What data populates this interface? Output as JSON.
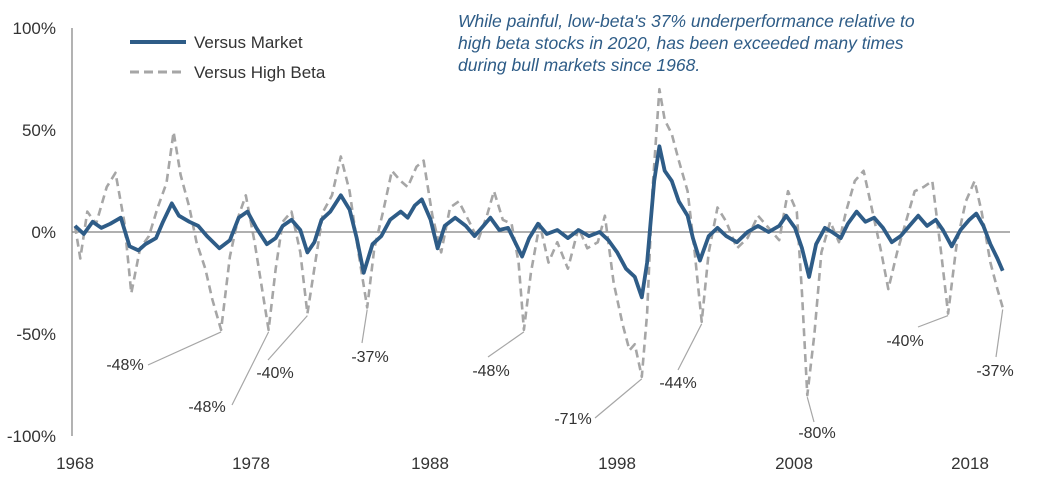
{
  "chart_data": {
    "type": "line",
    "x_unit": "year",
    "xlim": [
      1968,
      2021
    ],
    "ylim": [
      -100,
      100
    ],
    "y_ticks": [
      "100%",
      "50%",
      "0%",
      "-50%",
      "-100%"
    ],
    "y_tick_values": [
      100,
      50,
      0,
      -50,
      -100
    ],
    "x_ticks": [
      "1968",
      "1978",
      "1988",
      "1998",
      "2008",
      "2018"
    ],
    "x_tick_values": [
      1968,
      1978,
      1988,
      1998,
      2008,
      2018
    ],
    "grid": false,
    "legend_placement": "top-left",
    "series": [
      {
        "name": "Versus Market",
        "color": "#2e5c87",
        "style": "solid",
        "points": [
          [
            1968.0,
            3
          ],
          [
            1968.5,
            -1
          ],
          [
            1969.0,
            5
          ],
          [
            1969.5,
            2
          ],
          [
            1970.0,
            4
          ],
          [
            1970.6,
            7
          ],
          [
            1971.1,
            -7
          ],
          [
            1971.6,
            -9
          ],
          [
            1972.0,
            -6
          ],
          [
            1972.6,
            -3
          ],
          [
            1973.0,
            5
          ],
          [
            1973.5,
            14
          ],
          [
            1973.9,
            8
          ],
          [
            1974.5,
            5
          ],
          [
            1975.0,
            3
          ],
          [
            1975.5,
            -2
          ],
          [
            1976.2,
            -8
          ],
          [
            1976.8,
            -4
          ],
          [
            1977.3,
            7
          ],
          [
            1977.8,
            10
          ],
          [
            1978.3,
            2
          ],
          [
            1978.9,
            -6
          ],
          [
            1979.4,
            -3
          ],
          [
            1979.8,
            3
          ],
          [
            1980.3,
            6
          ],
          [
            1980.8,
            1
          ],
          [
            1981.2,
            -10
          ],
          [
            1981.6,
            -5
          ],
          [
            1982.0,
            6
          ],
          [
            1982.5,
            10
          ],
          [
            1983.1,
            18
          ],
          [
            1983.6,
            11
          ],
          [
            1984.0,
            -3
          ],
          [
            1984.4,
            -20
          ],
          [
            1984.9,
            -6
          ],
          [
            1985.4,
            -2
          ],
          [
            1985.9,
            6
          ],
          [
            1986.5,
            10
          ],
          [
            1986.9,
            7
          ],
          [
            1987.3,
            13
          ],
          [
            1987.7,
            16
          ],
          [
            1988.2,
            6
          ],
          [
            1988.6,
            -8
          ],
          [
            1989.0,
            3
          ],
          [
            1989.6,
            7
          ],
          [
            1990.2,
            3
          ],
          [
            1990.7,
            -2
          ],
          [
            1991.2,
            3
          ],
          [
            1991.6,
            7
          ],
          [
            1992.1,
            1
          ],
          [
            1992.6,
            2
          ],
          [
            1993.0,
            -5
          ],
          [
            1993.4,
            -12
          ],
          [
            1993.8,
            -3
          ],
          [
            1994.3,
            4
          ],
          [
            1994.8,
            -1
          ],
          [
            1995.4,
            1
          ],
          [
            1996.0,
            -3
          ],
          [
            1996.6,
            1
          ],
          [
            1997.2,
            -2
          ],
          [
            1997.8,
            0
          ],
          [
            1998.3,
            -4
          ],
          [
            1998.8,
            -10
          ],
          [
            1999.3,
            -18
          ],
          [
            1999.8,
            -22
          ],
          [
            2000.2,
            -32
          ],
          [
            2000.5,
            -15
          ],
          [
            2000.9,
            25
          ],
          [
            2001.2,
            42
          ],
          [
            2001.5,
            30
          ],
          [
            2001.9,
            25
          ],
          [
            2002.3,
            15
          ],
          [
            2002.8,
            8
          ],
          [
            2003.1,
            -3
          ],
          [
            2003.5,
            -14
          ],
          [
            2004.0,
            -2
          ],
          [
            2004.5,
            2
          ],
          [
            2005.0,
            -2
          ],
          [
            2005.6,
            -5
          ],
          [
            2006.2,
            0
          ],
          [
            2006.8,
            3
          ],
          [
            2007.4,
            0
          ],
          [
            2008.0,
            3
          ],
          [
            2008.4,
            8
          ],
          [
            2008.9,
            2
          ],
          [
            2009.3,
            -8
          ],
          [
            2009.7,
            -22
          ],
          [
            2010.1,
            -6
          ],
          [
            2010.6,
            2
          ],
          [
            2011.0,
            0
          ],
          [
            2011.5,
            -3
          ],
          [
            2011.9,
            4
          ],
          [
            2012.4,
            10
          ],
          [
            2012.9,
            5
          ],
          [
            2013.4,
            7
          ],
          [
            2013.9,
            2
          ],
          [
            2014.4,
            -5
          ],
          [
            2014.9,
            -2
          ],
          [
            2015.4,
            3
          ],
          [
            2015.9,
            8
          ],
          [
            2016.4,
            3
          ],
          [
            2016.9,
            6
          ],
          [
            2017.3,
            1
          ],
          [
            2017.8,
            -7
          ],
          [
            2018.3,
            1
          ],
          [
            2018.8,
            6
          ],
          [
            2019.2,
            9
          ],
          [
            2019.6,
            3
          ],
          [
            2020.0,
            -6
          ],
          [
            2020.4,
            -13
          ],
          [
            2020.7,
            -19
          ]
        ]
      },
      {
        "name": "Versus High Beta",
        "color": "#a6a6a6",
        "style": "dashed",
        "points": [
          [
            1968.0,
            3
          ],
          [
            1968.3,
            -13
          ],
          [
            1968.7,
            10
          ],
          [
            1969.2,
            4
          ],
          [
            1969.8,
            22
          ],
          [
            1970.3,
            29
          ],
          [
            1970.8,
            5
          ],
          [
            1971.2,
            -30
          ],
          [
            1971.7,
            -8
          ],
          [
            1972.2,
            -2
          ],
          [
            1972.7,
            12
          ],
          [
            1973.2,
            24
          ],
          [
            1973.6,
            49
          ],
          [
            1974.0,
            28
          ],
          [
            1974.5,
            12
          ],
          [
            1974.9,
            -5
          ],
          [
            1975.4,
            -18
          ],
          [
            1975.8,
            -33
          ],
          [
            1976.3,
            -48
          ],
          [
            1976.8,
            -12
          ],
          [
            1977.3,
            8
          ],
          [
            1977.7,
            18
          ],
          [
            1978.2,
            -5
          ],
          [
            1978.7,
            -32
          ],
          [
            1979.0,
            -48
          ],
          [
            1979.4,
            -18
          ],
          [
            1979.8,
            5
          ],
          [
            1980.3,
            10
          ],
          [
            1980.8,
            -10
          ],
          [
            1981.2,
            -40
          ],
          [
            1981.7,
            -12
          ],
          [
            1982.1,
            10
          ],
          [
            1982.6,
            18
          ],
          [
            1983.1,
            37
          ],
          [
            1983.6,
            20
          ],
          [
            1984.1,
            -10
          ],
          [
            1984.6,
            -37
          ],
          [
            1985.0,
            -8
          ],
          [
            1985.5,
            10
          ],
          [
            1986.0,
            30
          ],
          [
            1986.5,
            25
          ],
          [
            1986.9,
            22
          ],
          [
            1987.4,
            32
          ],
          [
            1987.8,
            35
          ],
          [
            1988.3,
            8
          ],
          [
            1988.8,
            -10
          ],
          [
            1989.3,
            12
          ],
          [
            1989.8,
            15
          ],
          [
            1990.4,
            5
          ],
          [
            1990.9,
            -4
          ],
          [
            1991.4,
            8
          ],
          [
            1991.8,
            20
          ],
          [
            1992.3,
            6
          ],
          [
            1992.8,
            4
          ],
          [
            1993.2,
            -15
          ],
          [
            1993.5,
            -48
          ],
          [
            1993.9,
            -20
          ],
          [
            1994.4,
            4
          ],
          [
            1994.9,
            -15
          ],
          [
            1995.4,
            -5
          ],
          [
            1996.0,
            -18
          ],
          [
            1996.6,
            2
          ],
          [
            1997.1,
            -8
          ],
          [
            1997.7,
            -5
          ],
          [
            1998.1,
            8
          ],
          [
            1998.6,
            -25
          ],
          [
            1999.1,
            -45
          ],
          [
            1999.5,
            -58
          ],
          [
            1999.8,
            -55
          ],
          [
            2000.2,
            -71
          ],
          [
            2000.5,
            -40
          ],
          [
            2000.8,
            20
          ],
          [
            2001.2,
            70
          ],
          [
            2001.5,
            55
          ],
          [
            2001.9,
            48
          ],
          [
            2002.3,
            35
          ],
          [
            2002.8,
            20
          ],
          [
            2003.2,
            -10
          ],
          [
            2003.6,
            -44
          ],
          [
            2004.0,
            -10
          ],
          [
            2004.5,
            12
          ],
          [
            2005.0,
            5
          ],
          [
            2005.6,
            -8
          ],
          [
            2006.2,
            -3
          ],
          [
            2006.8,
            8
          ],
          [
            2007.4,
            2
          ],
          [
            2008.0,
            -4
          ],
          [
            2008.5,
            20
          ],
          [
            2009.0,
            10
          ],
          [
            2009.3,
            -30
          ],
          [
            2009.6,
            -80
          ],
          [
            2010.0,
            -50
          ],
          [
            2010.4,
            -10
          ],
          [
            2010.9,
            5
          ],
          [
            2011.4,
            -5
          ],
          [
            2011.8,
            10
          ],
          [
            2012.3,
            25
          ],
          [
            2012.8,
            30
          ],
          [
            2013.3,
            10
          ],
          [
            2013.8,
            -10
          ],
          [
            2014.2,
            -28
          ],
          [
            2014.7,
            -10
          ],
          [
            2015.2,
            5
          ],
          [
            2015.7,
            20
          ],
          [
            2016.2,
            22
          ],
          [
            2016.7,
            25
          ],
          [
            2017.2,
            -10
          ],
          [
            2017.6,
            -40
          ],
          [
            2018.1,
            -5
          ],
          [
            2018.6,
            15
          ],
          [
            2019.1,
            25
          ],
          [
            2019.5,
            10
          ],
          [
            2020.0,
            -15
          ],
          [
            2020.4,
            -28
          ],
          [
            2020.7,
            -37
          ]
        ]
      }
    ],
    "annotations": [
      {
        "text": "-48%",
        "x": 1976.3,
        "y": -48
      },
      {
        "text": "-48%",
        "x": 1979.0,
        "y": -48
      },
      {
        "text": "-40%",
        "x": 1981.2,
        "y": -40
      },
      {
        "text": "-37%",
        "x": 1984.6,
        "y": -37
      },
      {
        "text": "-48%",
        "x": 1993.5,
        "y": -48
      },
      {
        "text": "-71%",
        "x": 2000.2,
        "y": -71
      },
      {
        "text": "-44%",
        "x": 2003.6,
        "y": -44
      },
      {
        "text": "-80%",
        "x": 2009.6,
        "y": -80
      },
      {
        "text": "-40%",
        "x": 2017.6,
        "y": -40
      },
      {
        "text": "-37%",
        "x": 2020.7,
        "y": -37
      }
    ]
  },
  "note": {
    "lines": [
      "While painful, low-beta's 37% underperformance relative to",
      "high beta stocks in 2020, has been exceeded many times",
      "during bull markets since 1968."
    ]
  }
}
